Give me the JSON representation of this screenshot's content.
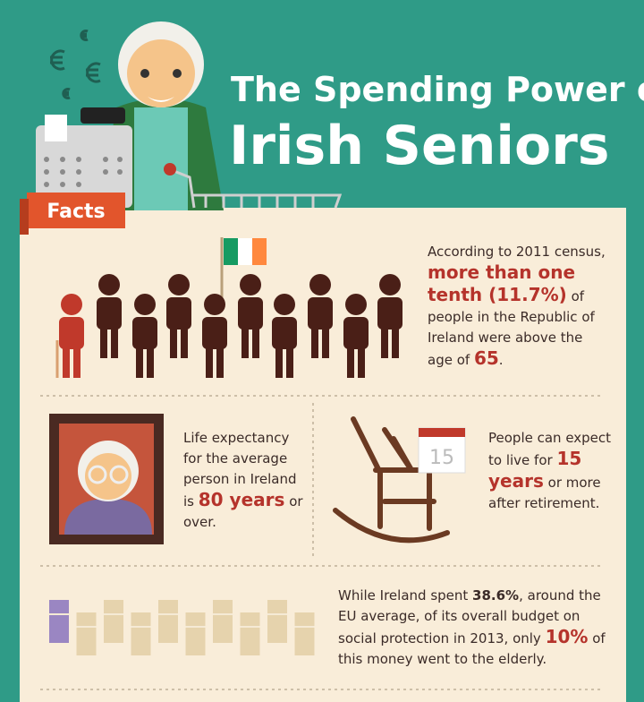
{
  "header": {
    "title_line1": "The Spending Power of",
    "title_line2": "Irish Seniors",
    "tab": "Facts"
  },
  "facts": [
    {
      "segments": [
        {
          "text": "According to 2011 census, ",
          "em": false
        },
        {
          "text": "more than one tenth (11.7%)",
          "em": true
        },
        {
          "text": " of people in the Republic of Ireland were above the age of ",
          "em": false
        },
        {
          "text": "65",
          "em": true
        },
        {
          "text": ".",
          "em": false
        }
      ]
    },
    {
      "segments": [
        {
          "text": "Life expectancy for the average person in Ireland is ",
          "em": false
        },
        {
          "text": "80 years",
          "em": true
        },
        {
          "text": " or over.",
          "em": false
        }
      ]
    },
    {
      "calendar": "15",
      "segments": [
        {
          "text": "People can expect to live for ",
          "em": false
        },
        {
          "text": "15 years",
          "em": true
        },
        {
          "text": " or more after retirement.",
          "em": false
        }
      ]
    },
    {
      "segments": [
        {
          "text": "While Ireland spent ",
          "em": false
        },
        {
          "text": "38.6%",
          "em": "bold"
        },
        {
          "text": ", around the EU average, of its overall budget on social protection in 2013, only ",
          "em": false
        },
        {
          "text": "10%",
          "em": true
        },
        {
          "text": " of this money went to the elderly.",
          "em": false
        }
      ]
    }
  ]
}
